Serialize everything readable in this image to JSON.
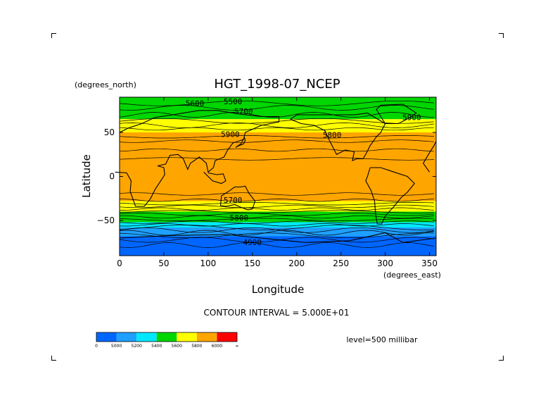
{
  "chart_data": {
    "type": "heatmap",
    "title": "HGT_1998-07_NCEP",
    "xlabel": "Longitude",
    "ylabel": "Latitude",
    "x_unit": "(degrees_east)",
    "y_unit": "(degrees_north)",
    "xlim": [
      0,
      357.5
    ],
    "ylim": [
      -90,
      90
    ],
    "xticks": [
      0,
      50,
      100,
      150,
      200,
      250,
      300,
      350
    ],
    "yticks": [
      50,
      0,
      -50
    ],
    "contour_interval": "CONTOUR INTERVAL = 5.000E+01",
    "level_label": "level=500 millibar",
    "contour_labels": [
      "5600",
      "5500",
      "5700",
      "5900",
      "5800",
      "5900",
      "5700",
      "5800",
      "4900"
    ],
    "colorbar": {
      "labels": [
        "0",
        "5000",
        "5200",
        "5400",
        "5600",
        "5800",
        "6000",
        "∞"
      ],
      "colors": [
        "#0066ff",
        "#1fa0ff",
        "#00e8ff",
        "#00d600",
        "#ffff00",
        "#ffa500",
        "#ff0000"
      ]
    },
    "lat_bands": [
      {
        "lat": [
          65,
          90
        ],
        "color": "#00d600"
      },
      {
        "lat": [
          50,
          65
        ],
        "color": "#ffff00"
      },
      {
        "lat": [
          -28,
          50
        ],
        "color": "#ffa500"
      },
      {
        "lat": [
          -40,
          -28
        ],
        "color": "#ffff00"
      },
      {
        "lat": [
          -52,
          -40
        ],
        "color": "#00d600"
      },
      {
        "lat": [
          -58,
          -52
        ],
        "color": "#00e8ff"
      },
      {
        "lat": [
          -68,
          -58
        ],
        "color": "#1fa0ff"
      },
      {
        "lat": [
          -90,
          -68
        ],
        "color": "#0066ff"
      }
    ]
  }
}
